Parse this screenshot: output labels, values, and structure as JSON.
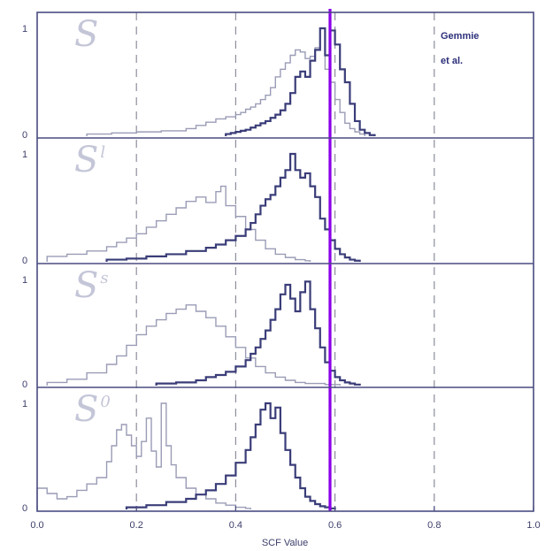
{
  "chart_data": {
    "type": "line",
    "xlabel": "SCF Value",
    "xlim": [
      0.0,
      1.0
    ],
    "x_ticks": [
      "0.0",
      "0.2",
      "0.4",
      "0.6",
      "0.8",
      "1.0"
    ],
    "annotation": [
      "Gemmie",
      "et al."
    ],
    "vertical_markers": {
      "dashed": [
        0.2,
        0.4,
        0.6,
        0.8
      ],
      "highlight": 0.59,
      "highlight_color": "#8a00e8"
    },
    "colors": {
      "dark": "#3a3d78",
      "light": "#9a9cb6",
      "frame": "#4a4c80"
    },
    "panels": [
      {
        "name": "S",
        "base": "S",
        "sup": "",
        "y_ticks": [
          "1",
          "0"
        ],
        "ylim": [
          0,
          1
        ],
        "x": [
          0.38,
          0.39,
          0.4,
          0.41,
          0.42,
          0.43,
          0.44,
          0.45,
          0.46,
          0.47,
          0.48,
          0.49,
          0.5,
          0.51,
          0.52,
          0.53,
          0.54,
          0.55,
          0.56,
          0.57,
          0.58,
          0.59,
          0.6,
          0.61,
          0.62,
          0.63,
          0.64,
          0.65,
          0.66,
          0.67
        ],
        "series": [
          {
            "name": "light",
            "x": [
              0.1,
              0.15,
              0.2,
              0.25,
              0.3,
              0.32,
              0.34,
              0.36,
              0.38,
              0.4,
              0.41,
              0.42,
              0.43,
              0.44,
              0.45,
              0.46,
              0.47,
              0.48,
              0.49,
              0.5,
              0.51,
              0.52,
              0.53,
              0.54,
              0.55,
              0.56,
              0.57,
              0.58,
              0.59,
              0.6,
              0.61,
              0.62,
              0.63,
              0.64,
              0.65
            ],
            "values": [
              0.02,
              0.03,
              0.04,
              0.05,
              0.07,
              0.1,
              0.13,
              0.16,
              0.18,
              0.2,
              0.22,
              0.25,
              0.27,
              0.3,
              0.34,
              0.38,
              0.45,
              0.55,
              0.62,
              0.68,
              0.75,
              0.8,
              0.78,
              0.72,
              0.74,
              0.82,
              1.0,
              0.62,
              0.5,
              0.34,
              0.22,
              0.12,
              0.07,
              0.04,
              0.02
            ]
          },
          {
            "name": "dark",
            "x": [
              0.38,
              0.39,
              0.4,
              0.41,
              0.42,
              0.43,
              0.44,
              0.45,
              0.46,
              0.47,
              0.48,
              0.49,
              0.5,
              0.51,
              0.52,
              0.53,
              0.54,
              0.55,
              0.56,
              0.57,
              0.58,
              0.59,
              0.6,
              0.61,
              0.62,
              0.63,
              0.64,
              0.65,
              0.66,
              0.67
            ],
            "values": [
              0.02,
              0.03,
              0.04,
              0.05,
              0.06,
              0.08,
              0.1,
              0.12,
              0.14,
              0.17,
              0.2,
              0.24,
              0.3,
              0.4,
              0.55,
              0.6,
              0.55,
              0.7,
              0.8,
              1.0,
              0.75,
              0.98,
              0.85,
              0.62,
              0.5,
              0.3,
              0.14,
              0.06,
              0.03,
              0.01
            ]
          }
        ]
      },
      {
        "name": "S-l",
        "base": "S",
        "sup": "l",
        "y_ticks": [
          "1",
          "0"
        ],
        "ylim": [
          0,
          1
        ],
        "series": [
          {
            "name": "light",
            "x": [
              0.02,
              0.06,
              0.1,
              0.14,
              0.16,
              0.18,
              0.2,
              0.22,
              0.24,
              0.26,
              0.28,
              0.3,
              0.32,
              0.34,
              0.36,
              0.37,
              0.38,
              0.4,
              0.42,
              0.44,
              0.46,
              0.48,
              0.5,
              0.52,
              0.54
            ],
            "values": [
              0.05,
              0.07,
              0.1,
              0.14,
              0.18,
              0.22,
              0.26,
              0.32,
              0.38,
              0.44,
              0.5,
              0.56,
              0.6,
              0.55,
              0.65,
              0.7,
              0.52,
              0.42,
              0.3,
              0.2,
              0.12,
              0.07,
              0.04,
              0.02,
              0.01
            ]
          },
          {
            "name": "dark",
            "x": [
              0.14,
              0.18,
              0.22,
              0.26,
              0.3,
              0.34,
              0.36,
              0.38,
              0.4,
              0.42,
              0.43,
              0.44,
              0.45,
              0.46,
              0.47,
              0.48,
              0.49,
              0.5,
              0.51,
              0.52,
              0.53,
              0.54,
              0.55,
              0.56,
              0.57,
              0.58,
              0.59,
              0.6,
              0.61,
              0.62,
              0.63,
              0.64
            ],
            "values": [
              0.02,
              0.03,
              0.05,
              0.07,
              0.1,
              0.13,
              0.16,
              0.2,
              0.24,
              0.3,
              0.36,
              0.44,
              0.52,
              0.58,
              0.62,
              0.7,
              0.78,
              0.85,
              1.0,
              0.85,
              0.78,
              0.82,
              0.7,
              0.6,
              0.4,
              0.3,
              0.2,
              0.12,
              0.07,
              0.04,
              0.02,
              0.01
            ]
          }
        ]
      },
      {
        "name": "S-s",
        "base": "S",
        "sup": "s",
        "y_ticks": [
          "1",
          "0"
        ],
        "ylim": [
          0,
          1
        ],
        "series": [
          {
            "name": "light",
            "x": [
              0.02,
              0.06,
              0.1,
              0.14,
              0.16,
              0.18,
              0.2,
              0.22,
              0.24,
              0.26,
              0.28,
              0.3,
              0.32,
              0.34,
              0.36,
              0.38,
              0.4,
              0.42,
              0.44,
              0.46,
              0.48,
              0.5,
              0.52,
              0.54,
              0.56,
              0.58,
              0.6
            ],
            "values": [
              0.03,
              0.06,
              0.12,
              0.2,
              0.28,
              0.38,
              0.48,
              0.56,
              0.62,
              0.68,
              0.72,
              0.76,
              0.7,
              0.64,
              0.56,
              0.46,
              0.36,
              0.26,
              0.18,
              0.12,
              0.08,
              0.05,
              0.03,
              0.02,
              0.02,
              0.01,
              0.01
            ]
          },
          {
            "name": "dark",
            "x": [
              0.24,
              0.28,
              0.32,
              0.34,
              0.36,
              0.38,
              0.4,
              0.42,
              0.43,
              0.44,
              0.45,
              0.46,
              0.47,
              0.48,
              0.49,
              0.5,
              0.51,
              0.52,
              0.53,
              0.54,
              0.55,
              0.56,
              0.57,
              0.58,
              0.59,
              0.6,
              0.61,
              0.62,
              0.63,
              0.64
            ],
            "values": [
              0.02,
              0.03,
              0.05,
              0.08,
              0.1,
              0.13,
              0.18,
              0.24,
              0.3,
              0.36,
              0.44,
              0.52,
              0.62,
              0.72,
              0.86,
              0.95,
              0.82,
              0.7,
              0.88,
              0.98,
              0.72,
              0.54,
              0.36,
              0.22,
              0.14,
              0.08,
              0.05,
              0.03,
              0.02,
              0.01
            ]
          }
        ]
      },
      {
        "name": "S-0",
        "base": "S",
        "sup": "0",
        "y_ticks": [
          "1",
          "0"
        ],
        "ylim": [
          0,
          1
        ],
        "series": [
          {
            "name": "light",
            "x": [
              0.0,
              0.02,
              0.04,
              0.06,
              0.08,
              0.1,
              0.12,
              0.14,
              0.15,
              0.16,
              0.17,
              0.18,
              0.19,
              0.2,
              0.21,
              0.22,
              0.23,
              0.24,
              0.25,
              0.26,
              0.27,
              0.28,
              0.3,
              0.32,
              0.34,
              0.36,
              0.38,
              0.4,
              0.42
            ],
            "values": [
              0.2,
              0.15,
              0.1,
              0.12,
              0.18,
              0.24,
              0.3,
              0.45,
              0.6,
              0.75,
              0.8,
              0.7,
              0.6,
              0.5,
              0.64,
              0.86,
              0.55,
              0.4,
              1.0,
              0.6,
              0.42,
              0.3,
              0.2,
              0.14,
              0.1,
              0.06,
              0.04,
              0.02,
              0.01
            ]
          },
          {
            "name": "dark",
            "x": [
              0.18,
              0.22,
              0.26,
              0.3,
              0.32,
              0.34,
              0.36,
              0.38,
              0.4,
              0.42,
              0.43,
              0.44,
              0.45,
              0.46,
              0.47,
              0.48,
              0.49,
              0.5,
              0.51,
              0.52,
              0.53,
              0.54,
              0.55,
              0.56,
              0.57,
              0.58,
              0.59
            ],
            "values": [
              0.02,
              0.04,
              0.07,
              0.1,
              0.14,
              0.18,
              0.24,
              0.32,
              0.44,
              0.56,
              0.68,
              0.8,
              0.94,
              1.0,
              0.86,
              0.96,
              0.72,
              0.56,
              0.42,
              0.3,
              0.2,
              0.12,
              0.08,
              0.05,
              0.03,
              0.02,
              0.01
            ]
          }
        ]
      }
    ]
  }
}
